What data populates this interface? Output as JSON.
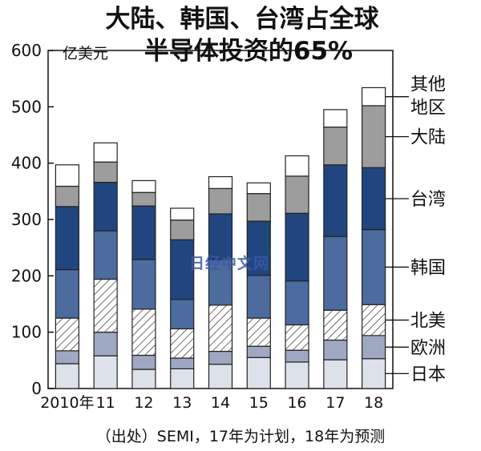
{
  "title_line1": "大陆、韩国、台湾占全球",
  "title_line2": "半导体投资的65%",
  "unit_label": "亿美元",
  "watermark": "日经中文网",
  "source_note": "（出处）SEMI，17年为计划，18年为预测",
  "chart_data": {
    "type": "bar",
    "stacked": true,
    "categories": [
      "2010年",
      "11",
      "12",
      "13",
      "14",
      "15",
      "16",
      "17",
      "18"
    ],
    "ylim": [
      0,
      600
    ],
    "yticks": [
      0,
      100,
      200,
      300,
      400,
      500,
      600
    ],
    "grid": false,
    "legend_position": "right",
    "series": [
      {
        "name": "日本",
        "color": "#dde1ea",
        "pattern": "solid",
        "values": [
          44,
          58,
          34,
          35,
          43,
          55,
          47,
          51,
          53
        ]
      },
      {
        "name": "欧洲",
        "color": "#9ea8c2",
        "pattern": "solid",
        "values": [
          23,
          42,
          25,
          19,
          23,
          20,
          21,
          35,
          41
        ]
      },
      {
        "name": "北美",
        "color": "#ffffff",
        "pattern": "hatch",
        "values": [
          58,
          94,
          82,
          52,
          82,
          50,
          45,
          53,
          55
        ]
      },
      {
        "name": "韩国",
        "color": "#4c6b9e",
        "pattern": "solid",
        "values": [
          86,
          86,
          88,
          52,
          81,
          76,
          78,
          131,
          133
        ]
      },
      {
        "name": "台湾",
        "color": "#21467f",
        "pattern": "solid",
        "values": [
          112,
          86,
          95,
          106,
          81,
          96,
          120,
          127,
          110
        ]
      },
      {
        "name": "大陆",
        "color": "#9d9d9d",
        "pattern": "solid",
        "values": [
          36,
          36,
          24,
          35,
          45,
          49,
          66,
          67,
          110
        ]
      },
      {
        "name": "其他地区",
        "color": "#ffffff",
        "pattern": "solid",
        "values": [
          38,
          34,
          21,
          21,
          21,
          19,
          36,
          31,
          32
        ]
      }
    ]
  }
}
